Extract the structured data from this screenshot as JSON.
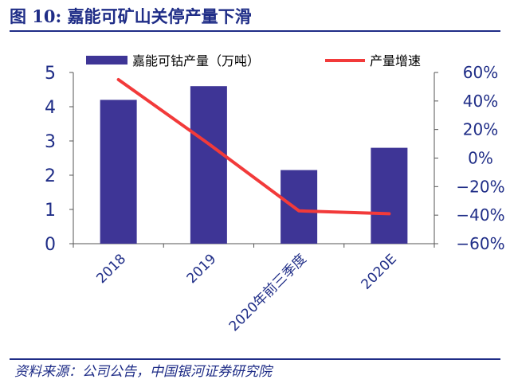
{
  "figure": {
    "title": "图 10:  嘉能可矿山关停产量下滑",
    "source": "资料来源：公司公告，中国银河证券研究院"
  },
  "colors": {
    "bar": "#3e3596",
    "line": "#f23a3a",
    "text": "#1f2d87",
    "axis": "#555555"
  },
  "chart_data": {
    "type": "bar",
    "categories": [
      "2018",
      "2019",
      "2020年前三季度",
      "2020E"
    ],
    "series": [
      {
        "name": "嘉能可钴产量（万吨）",
        "type": "bar",
        "axis": "left",
        "values": [
          4.2,
          4.6,
          2.15,
          2.8
        ]
      },
      {
        "name": "产量增速",
        "type": "line",
        "axis": "right",
        "values": [
          55,
          10,
          -37,
          -39
        ]
      }
    ],
    "y_left": {
      "min": 0,
      "max": 5,
      "ticks": [
        "0",
        "1",
        "2",
        "3",
        "4",
        "5"
      ]
    },
    "y_right": {
      "min": -60,
      "max": 60,
      "ticks": [
        "-60%",
        "-40%",
        "-20%",
        "0%",
        "20%",
        "40%",
        "60%"
      ]
    },
    "legend_position": "top",
    "grid": false
  }
}
